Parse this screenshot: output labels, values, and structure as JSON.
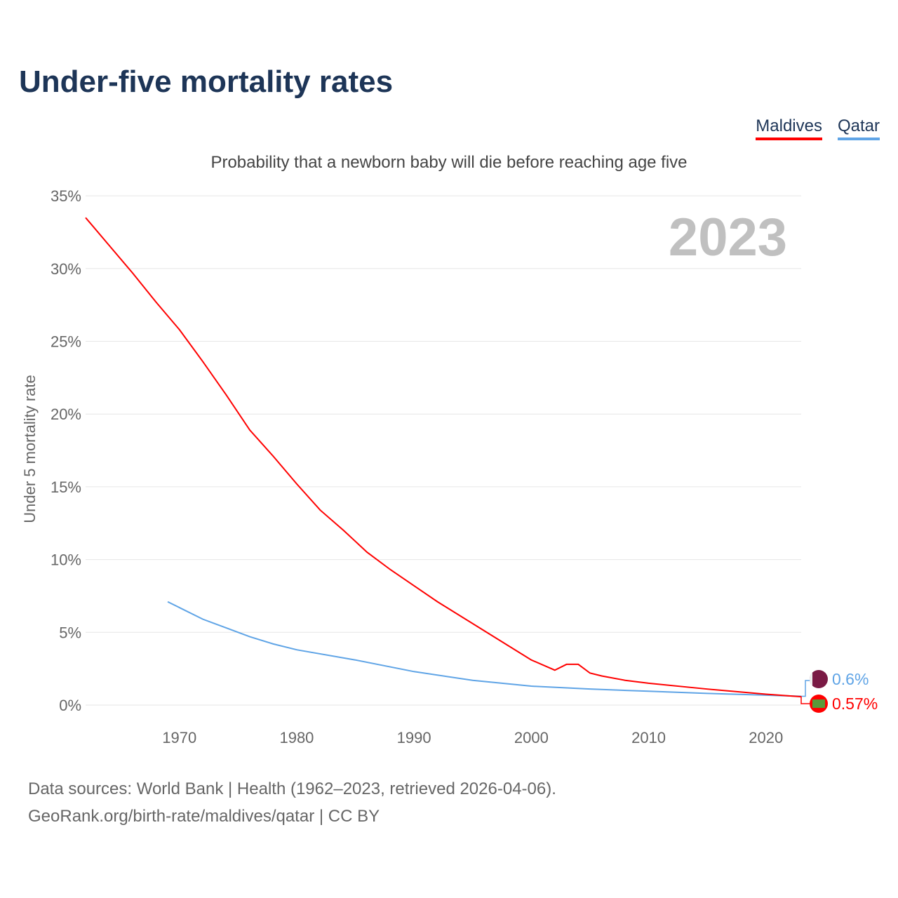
{
  "title": "Under-five mortality rates",
  "subtitle": "Probability that a newborn baby will die before reaching age five",
  "year_display": "2023",
  "footer": {
    "line1": "Data sources: World Bank | Health (1962–2023, retrieved 2026-04-06).",
    "line2": "GeoRank.org/birth-rate/maldives/qatar | CC BY"
  },
  "chart_data": {
    "type": "line",
    "title": "Under-five mortality rates",
    "ylabel": "Under 5 mortality rate",
    "xlabel": "",
    "ylim": [
      0,
      35
    ],
    "xlim": [
      1962,
      2023
    ],
    "yticks": [
      0,
      5,
      10,
      15,
      20,
      25,
      30,
      35
    ],
    "ytick_labels": [
      "0%",
      "5%",
      "10%",
      "15%",
      "20%",
      "25%",
      "30%",
      "35%"
    ],
    "xticks": [
      1970,
      1980,
      1990,
      2000,
      2010,
      2020
    ],
    "xtick_labels": [
      "1970",
      "1980",
      "1990",
      "2000",
      "2010",
      "2020"
    ],
    "legend": "top-right",
    "series": [
      {
        "name": "Maldives",
        "color": "#ff0000",
        "end_label": "0.57%",
        "x": [
          1962,
          1964,
          1966,
          1968,
          1970,
          1972,
          1974,
          1976,
          1978,
          1980,
          1982,
          1984,
          1986,
          1988,
          1990,
          1992,
          1994,
          1996,
          1998,
          2000,
          2002,
          2003,
          2004,
          2005,
          2006,
          2008,
          2010,
          2015,
          2020,
          2023
        ],
        "y": [
          33.5,
          31.6,
          29.7,
          27.7,
          25.8,
          23.6,
          21.3,
          18.9,
          17.1,
          15.2,
          13.4,
          12.0,
          10.5,
          9.3,
          8.2,
          7.1,
          6.1,
          5.1,
          4.1,
          3.1,
          2.4,
          2.8,
          2.8,
          2.2,
          2.0,
          1.7,
          1.5,
          1.1,
          0.75,
          0.57
        ]
      },
      {
        "name": "Qatar",
        "color": "#5fa4e6",
        "end_label": "0.6%",
        "x": [
          1969,
          1970,
          1972,
          1974,
          1976,
          1978,
          1980,
          1985,
          1990,
          1995,
          2000,
          2005,
          2010,
          2015,
          2020,
          2023
        ],
        "y": [
          7.1,
          6.7,
          5.9,
          5.3,
          4.7,
          4.2,
          3.8,
          3.1,
          2.3,
          1.7,
          1.3,
          1.1,
          0.95,
          0.8,
          0.68,
          0.6
        ]
      }
    ]
  }
}
